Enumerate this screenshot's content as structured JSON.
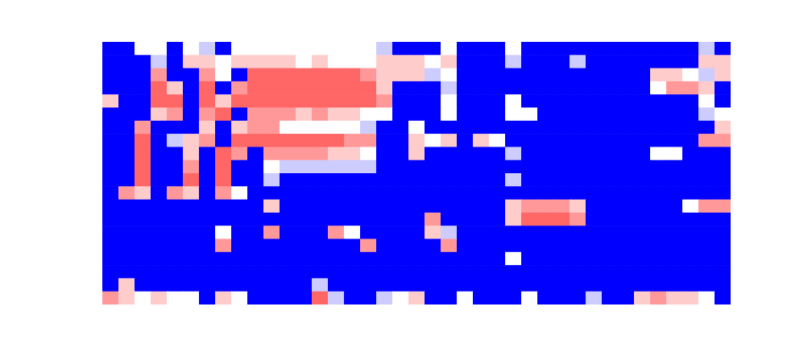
{
  "chart_data": {
    "type": "heatmap",
    "tick_labels": false,
    "xlim": [
      0,
      39
    ],
    "ylim": [
      0,
      20
    ],
    "zlim": [
      0,
      1
    ],
    "cells": [
      [
        0,
        0,
        0.5,
        0.5,
        0,
        0.5,
        0.4,
        0,
        0.5,
        0.5,
        0.5,
        0.5,
        0.5,
        0.5,
        0.5,
        0.5,
        0.5,
        0.4,
        0,
        0,
        0,
        0.5,
        0,
        0,
        0,
        0.5,
        0,
        0,
        0,
        0,
        0,
        0,
        0,
        0,
        0,
        0,
        0,
        0.4,
        0
      ],
      [
        0,
        0,
        0,
        0.4,
        0,
        0.6,
        0.6,
        0.5,
        0.6,
        0.6,
        0.6,
        0.6,
        0.5,
        0.6,
        0.5,
        0.5,
        0.5,
        0.6,
        0.6,
        0.6,
        0.5,
        0.6,
        0,
        0,
        0,
        0.4,
        0,
        0,
        0,
        0.4,
        0,
        0,
        0,
        0,
        0,
        0,
        0,
        0.6,
        0.6
      ],
      [
        0,
        0,
        0,
        0.7,
        0,
        0,
        0.7,
        0.5,
        0,
        0.8,
        0.8,
        0.8,
        0.8,
        0.8,
        0.8,
        0.8,
        0.7,
        0.6,
        0.6,
        0.6,
        0.4,
        0.5,
        0,
        0,
        0,
        0,
        0,
        0,
        0,
        0,
        0,
        0,
        0,
        0,
        0.6,
        0.6,
        0.5,
        0.4,
        0.6
      ],
      [
        0,
        0,
        0,
        0.8,
        0.6,
        0,
        0.8,
        0,
        0.7,
        0.8,
        0.8,
        0.8,
        0.8,
        0.8,
        0.8,
        0.8,
        0.8,
        0.6,
        0,
        0,
        0,
        0.4,
        0,
        0,
        0,
        0,
        0,
        0,
        0,
        0,
        0,
        0,
        0,
        0,
        0.5,
        0.7,
        0.7,
        0.6,
        0
      ],
      [
        0.6,
        0,
        0,
        0.8,
        0.8,
        0,
        0.8,
        0.6,
        0.8,
        0.8,
        0.8,
        0.8,
        0.8,
        0.8,
        0.8,
        0.8,
        0.8,
        0.7,
        0,
        0,
        0,
        0.5,
        0,
        0,
        0,
        0.5,
        0,
        0,
        0,
        0,
        0,
        0,
        0,
        0,
        0,
        0,
        0,
        0.5,
        0
      ],
      [
        0,
        0,
        0,
        0.6,
        0.7,
        0,
        0.7,
        0.8,
        0,
        0.7,
        0.7,
        0.7,
        0.6,
        0.7,
        0.6,
        0.6,
        0.5,
        0.5,
        0,
        0,
        0,
        0.5,
        0,
        0,
        0,
        0.5,
        0.5,
        0,
        0,
        0,
        0,
        0,
        0,
        0,
        0,
        0,
        0,
        0.4,
        0.5
      ],
      [
        0,
        0,
        0.7,
        0,
        0,
        0,
        0.6,
        0,
        0.6,
        0.7,
        0.7,
        0.5,
        0.5,
        0.5,
        0.5,
        0.5,
        0.4,
        0,
        0,
        0.5,
        0,
        0,
        0,
        0,
        0,
        0,
        0,
        0,
        0,
        0,
        0,
        0,
        0,
        0,
        0,
        0,
        0,
        0,
        0.6
      ],
      [
        0,
        0,
        0.8,
        0,
        0.4,
        0.6,
        0.7,
        0,
        0.8,
        0.8,
        0.8,
        0.8,
        0.8,
        0.8,
        0.8,
        0.7,
        0.7,
        0,
        0,
        0.6,
        0.5,
        0.6,
        0,
        0.6,
        0.5,
        0,
        0,
        0,
        0,
        0,
        0,
        0,
        0,
        0,
        0,
        0,
        0,
        0.7,
        0.7
      ],
      [
        0,
        0,
        0.8,
        0,
        0,
        0.6,
        0,
        0.8,
        0.7,
        0,
        0.7,
        0.7,
        0.7,
        0.7,
        0.6,
        0.6,
        0.5,
        0,
        0,
        0.6,
        0,
        0,
        0,
        0,
        0,
        0.4,
        0,
        0,
        0,
        0,
        0,
        0,
        0,
        0,
        0.5,
        0.5,
        0,
        0,
        0
      ],
      [
        0,
        0,
        0.8,
        0,
        0,
        0.7,
        0,
        0.8,
        0,
        0,
        0.5,
        0.4,
        0.4,
        0.4,
        0.4,
        0.4,
        0.4,
        0,
        0,
        0,
        0,
        0,
        0,
        0,
        0,
        0,
        0,
        0,
        0,
        0,
        0,
        0,
        0,
        0,
        0,
        0,
        0,
        0,
        0
      ],
      [
        0,
        0,
        0.8,
        0,
        0,
        0.8,
        0,
        0.8,
        0,
        0,
        0.4,
        0,
        0,
        0,
        0,
        0,
        0,
        0,
        0,
        0,
        0,
        0,
        0,
        0,
        0,
        0.4,
        0,
        0,
        0,
        0,
        0,
        0,
        0,
        0,
        0,
        0,
        0,
        0,
        0
      ],
      [
        0,
        0.7,
        0.6,
        0,
        0.7,
        0.6,
        0,
        0.7,
        0.5,
        0,
        0,
        0,
        0,
        0,
        0,
        0,
        0,
        0,
        0,
        0,
        0,
        0,
        0,
        0,
        0,
        0,
        0,
        0,
        0,
        0,
        0,
        0,
        0,
        0,
        0,
        0,
        0,
        0,
        0
      ],
      [
        0,
        0,
        0,
        0,
        0,
        0,
        0,
        0,
        0,
        0,
        0.6,
        0,
        0,
        0,
        0,
        0,
        0,
        0,
        0,
        0,
        0,
        0,
        0,
        0,
        0,
        0.6,
        0.7,
        0.7,
        0.7,
        0.6,
        0,
        0,
        0,
        0,
        0,
        0,
        0.5,
        0.7,
        0.7
      ],
      [
        0,
        0,
        0,
        0,
        0,
        0,
        0,
        0,
        0,
        0,
        0,
        0,
        0,
        0,
        0,
        0,
        0,
        0,
        0,
        0,
        0.7,
        0,
        0,
        0,
        0,
        0.6,
        0.8,
        0.8,
        0.8,
        0.7,
        0,
        0,
        0,
        0,
        0,
        0,
        0,
        0,
        0
      ],
      [
        0,
        0,
        0,
        0,
        0,
        0,
        0,
        0.5,
        0,
        0,
        0.7,
        0,
        0,
        0,
        0.7,
        0.5,
        0,
        0,
        0,
        0,
        0.6,
        0.4,
        0,
        0,
        0,
        0,
        0,
        0,
        0,
        0,
        0,
        0,
        0,
        0,
        0,
        0,
        0,
        0,
        0
      ],
      [
        0,
        0,
        0,
        0,
        0,
        0,
        0,
        0.7,
        0,
        0,
        0,
        0,
        0,
        0,
        0,
        0,
        0.7,
        0,
        0,
        0,
        0,
        0.7,
        0,
        0,
        0,
        0,
        0,
        0,
        0,
        0,
        0,
        0,
        0,
        0,
        0,
        0,
        0,
        0,
        0
      ],
      [
        0,
        0,
        0,
        0,
        0,
        0,
        0,
        0,
        0,
        0,
        0,
        0,
        0,
        0,
        0,
        0,
        0,
        0,
        0,
        0,
        0,
        0,
        0,
        0,
        0,
        0.5,
        0,
        0,
        0,
        0,
        0,
        0,
        0,
        0,
        0,
        0,
        0,
        0,
        0
      ],
      [
        0,
        0,
        0,
        0,
        0,
        0,
        0,
        0,
        0,
        0,
        0,
        0,
        0,
        0,
        0,
        0,
        0,
        0,
        0,
        0,
        0,
        0,
        0,
        0,
        0,
        0,
        0,
        0,
        0,
        0,
        0,
        0,
        0,
        0,
        0,
        0,
        0,
        0,
        0
      ],
      [
        0,
        0.6,
        0,
        0,
        0,
        0,
        0,
        0,
        0,
        0,
        0,
        0,
        0,
        0.4,
        0,
        0,
        0,
        0,
        0,
        0,
        0,
        0,
        0,
        0,
        0,
        0,
        0,
        0,
        0,
        0,
        0,
        0,
        0,
        0,
        0,
        0,
        0,
        0,
        0
      ],
      [
        0.7,
        0.6,
        0.5,
        0.6,
        0.5,
        0.5,
        0,
        0.6,
        0.5,
        0,
        0,
        0,
        0,
        0.8,
        0.4,
        0,
        0,
        0.4,
        0.5,
        0.6,
        0,
        0,
        0.5,
        0,
        0,
        0,
        0.5,
        0,
        0,
        0,
        0.4,
        0,
        0,
        0.6,
        0.7,
        0.6,
        0.6,
        0.5,
        0
      ]
    ]
  }
}
